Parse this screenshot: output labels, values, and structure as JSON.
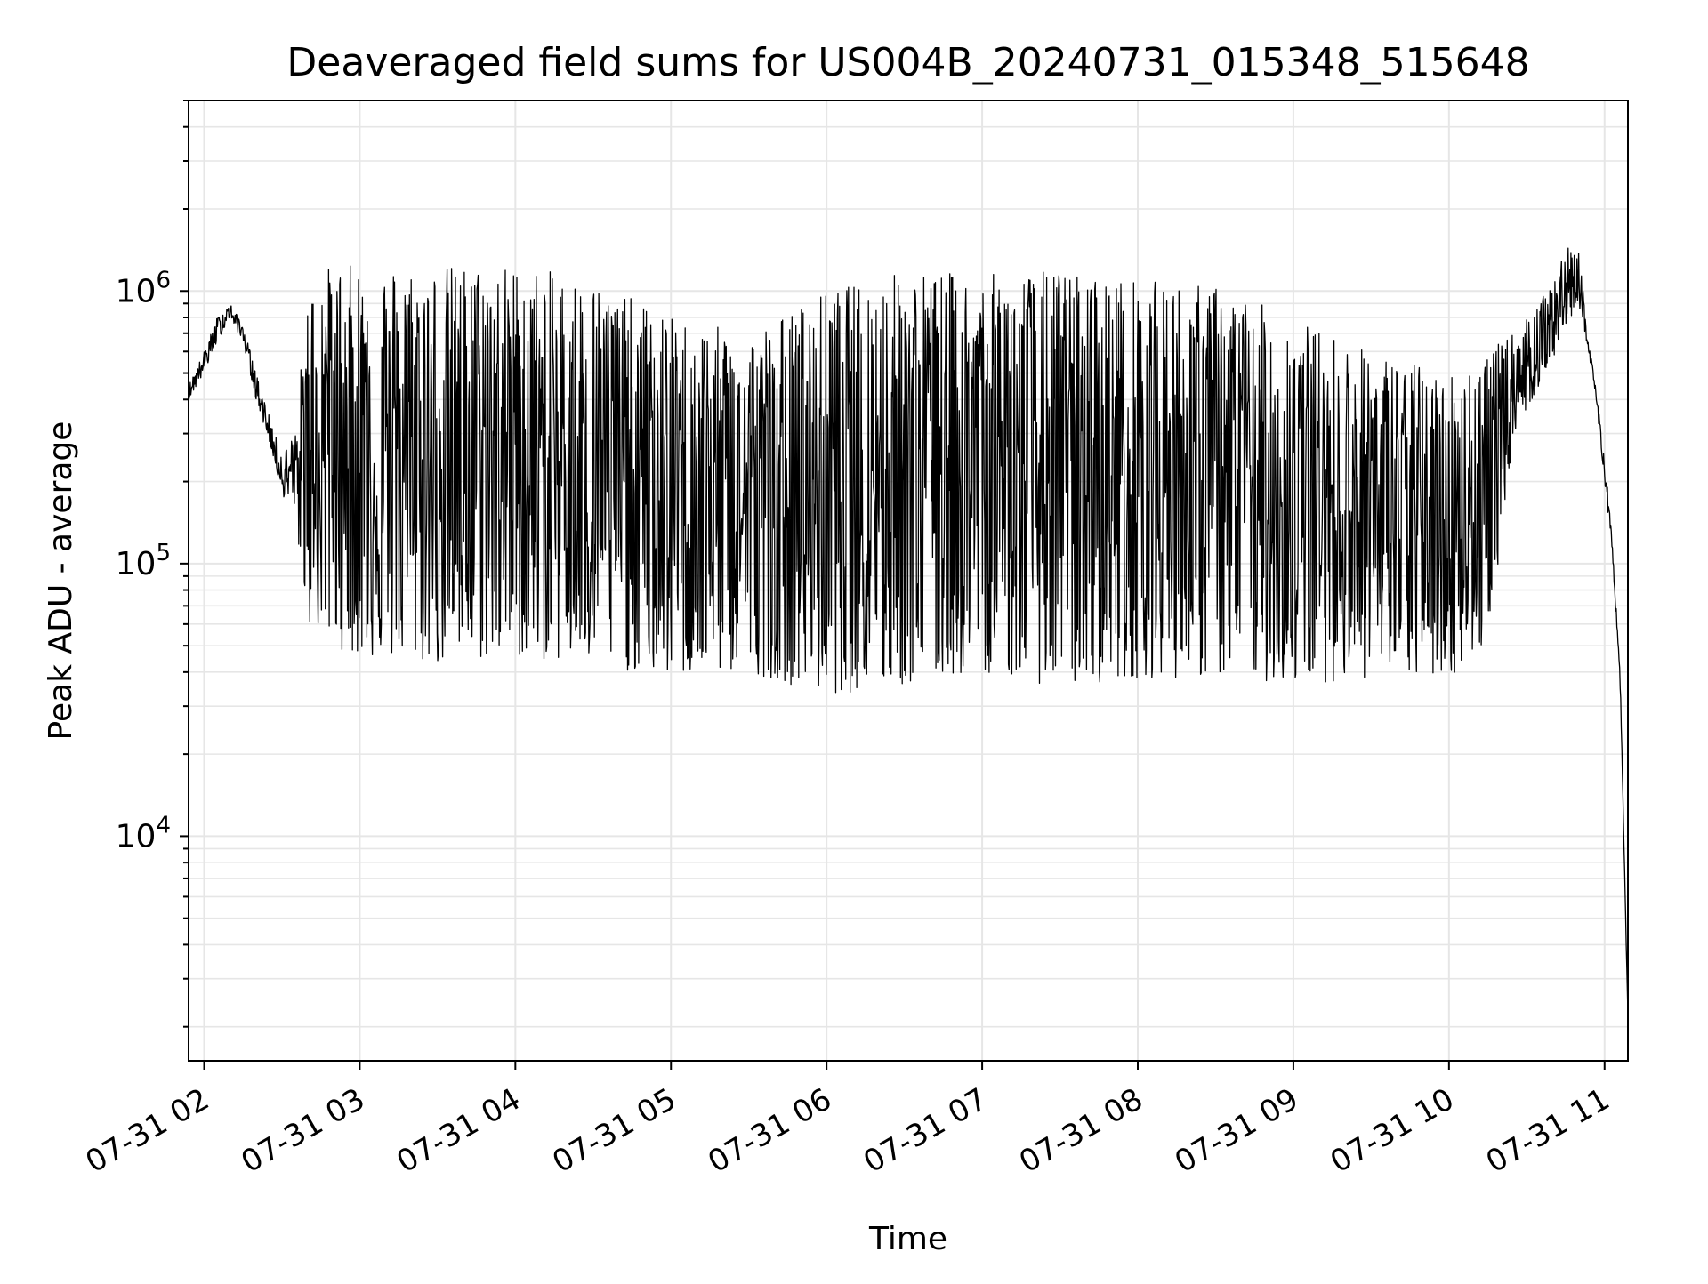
{
  "chart_data": {
    "type": "line",
    "title": "Deaveraged field sums for US004B_20240731_015348_515648",
    "xlabel": "Time",
    "ylabel": "Peak ADU - average",
    "yscale": "log",
    "ylim": [
      1500,
      5000000
    ],
    "xlim": [
      "2024-07-31 01:54",
      "2024-07-31 11:09"
    ],
    "xticks": [
      {
        "value": "2024-07-31 02:00",
        "label": "07-31 02"
      },
      {
        "value": "2024-07-31 03:00",
        "label": "07-31 03"
      },
      {
        "value": "2024-07-31 04:00",
        "label": "07-31 04"
      },
      {
        "value": "2024-07-31 05:00",
        "label": "07-31 05"
      },
      {
        "value": "2024-07-31 06:00",
        "label": "07-31 06"
      },
      {
        "value": "2024-07-31 07:00",
        "label": "07-31 07"
      },
      {
        "value": "2024-07-31 08:00",
        "label": "07-31 08"
      },
      {
        "value": "2024-07-31 09:00",
        "label": "07-31 09"
      },
      {
        "value": "2024-07-31 10:00",
        "label": "07-31 10"
      },
      {
        "value": "2024-07-31 11:00",
        "label": "07-31 11"
      }
    ],
    "yticks": [
      {
        "value": 10000,
        "base": "10",
        "exp": "4"
      },
      {
        "value": 100000,
        "base": "10",
        "exp": "5"
      },
      {
        "value": 1000000,
        "base": "10",
        "exp": "6"
      }
    ],
    "grid": true,
    "line_color": "#000000",
    "grid_color": "#e6e6e6",
    "series": [
      {
        "x": [
          "2024-07-31 01:54",
          "2024-07-31 02:00",
          "2024-07-31 02:05",
          "2024-07-31 02:10",
          "2024-07-31 02:15",
          "2024-07-31 02:20",
          "2024-07-31 02:25",
          "2024-07-31 02:30",
          "2024-07-31 02:35",
          "2024-07-31 02:40",
          "2024-07-31 02:45",
          "2024-07-31 02:50",
          "2024-07-31 03:00",
          "2024-07-31 03:30",
          "2024-07-31 04:00",
          "2024-07-31 04:30",
          "2024-07-31 05:00",
          "2024-07-31 05:30",
          "2024-07-31 06:00",
          "2024-07-31 06:30",
          "2024-07-31 07:00",
          "2024-07-31 07:30",
          "2024-07-31 08:00",
          "2024-07-31 08:30",
          "2024-07-31 09:00",
          "2024-07-31 09:30",
          "2024-07-31 10:00",
          "2024-07-31 10:15",
          "2024-07-31 10:25",
          "2024-07-31 10:35",
          "2024-07-31 10:45",
          "2024-07-31 10:50",
          "2024-07-31 10:53",
          "2024-07-31 10:56",
          "2024-07-31 11:00",
          "2024-07-31 11:03",
          "2024-07-31 11:06",
          "2024-07-31 11:09"
        ],
        "upper": [
          450000,
          600000,
          800000,
          900000,
          750000,
          500000,
          350000,
          250000,
          300000,
          1000000,
          1200000,
          1250000,
          1250000,
          1250000,
          1250000,
          1100000,
          800000,
          700000,
          1000000,
          1200000,
          1150000,
          1200000,
          1100000,
          1050000,
          800000,
          600000,
          500000,
          600000,
          700000,
          900000,
          1400000,
          1600000,
          700000,
          500000,
          250000,
          120000,
          40000,
          2200
        ],
        "lower": [
          400000,
          500000,
          650000,
          800000,
          650000,
          400000,
          280000,
          180000,
          150000,
          60000,
          55000,
          50000,
          45000,
          42000,
          45000,
          42000,
          38000,
          40000,
          33000,
          35000,
          40000,
          35000,
          38000,
          38000,
          36000,
          38000,
          38000,
          50000,
          300000,
          450000,
          700000,
          900000,
          650000,
          450000,
          200000,
          110000,
          35000,
          2200
        ]
      }
    ]
  }
}
